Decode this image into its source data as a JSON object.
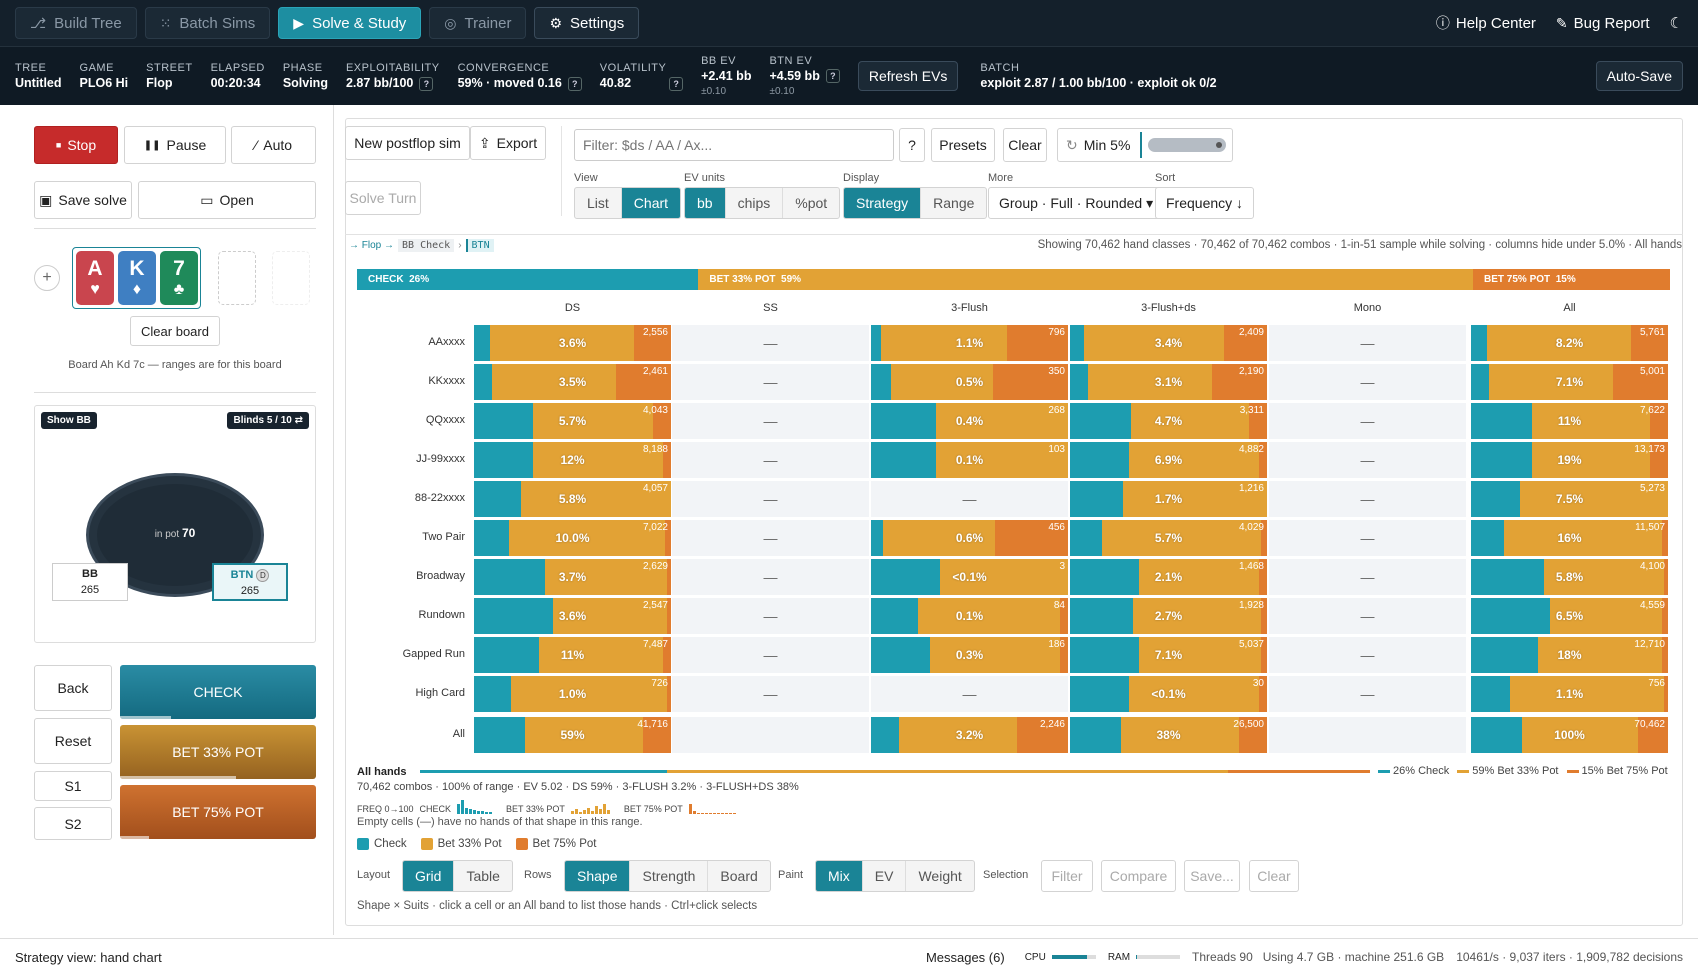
{
  "nav": {
    "tabs": [
      {
        "label": "Build Tree",
        "icon": "tree-icon"
      },
      {
        "label": "Batch Sims",
        "icon": "grid-icon"
      },
      {
        "label": "Solve & Study",
        "icon": "play-icon"
      },
      {
        "label": "Trainer",
        "icon": "target-icon"
      },
      {
        "label": "Settings",
        "icon": "gear-icon"
      }
    ],
    "help": "Help Center",
    "bug": "Bug Report",
    "moon": "☾"
  },
  "status": {
    "tree_lbl": "TREE",
    "tree": "Untitled",
    "game_lbl": "GAME",
    "game": "PLO6 Hi",
    "street_lbl": "STREET",
    "street": "Flop",
    "elapsed_lbl": "ELAPSED",
    "elapsed": "00:20:34",
    "phase_lbl": "PHASE",
    "phase": "Solving",
    "expl_lbl": "EXPLOITABILITY",
    "expl": "2.87 bb/100",
    "conv_lbl": "CONVERGENCE",
    "conv": "59% · moved 0.16",
    "vol_lbl": "VOLATILITY",
    "vol": "40.82",
    "bbev_lbl": "BB EV",
    "bbev": "+2.41 bb",
    "bbev_sub": "±0.10",
    "btnev_lbl": "BTN EV",
    "btnev": "+4.59 bb",
    "btnev_sub": "±0.10",
    "refresh": "Refresh EVs",
    "batch_lbl": "BATCH",
    "batch": "exploit 2.87 / 1.00 bb/100 · exploit ok 0/2",
    "autosave": "Auto-Save",
    "q": "?"
  },
  "left": {
    "stop": "Stop",
    "pause": "Pause",
    "auto": "Auto",
    "save": "Save solve",
    "open": "Open",
    "plus": "+",
    "cards": [
      {
        "rank": "A",
        "suit": "♥",
        "color": "#c9454e"
      },
      {
        "rank": "K",
        "suit": "♦",
        "color": "#3f7fc2"
      },
      {
        "rank": "7",
        "suit": "♣",
        "color": "#1f8a5a"
      }
    ],
    "clear_board": "Clear board",
    "board_note": "Board Ah Kd 7c — ranges are for this board",
    "show_bb": "Show BB",
    "blinds": "Blinds 5 / 10 ⇄",
    "inpot_lbl": "in pot",
    "inpot": "70",
    "bb_name": "BB",
    "bb_stack": "265",
    "btn_name": "BTN",
    "btn_stack": "265",
    "dealer": "D",
    "back": "Back",
    "reset": "Reset",
    "s1": "S1",
    "s2": "S2",
    "actions": [
      {
        "label": "CHECK",
        "frac": 0.26
      },
      {
        "label": "BET 33% POT",
        "frac": 0.59
      },
      {
        "label": "BET 75% POT",
        "frac": 0.15
      }
    ]
  },
  "toolbar": {
    "new_postflop": "New postflop sim",
    "export": "Export",
    "solve_turn": "Solve Turn",
    "filter_ph": "Filter: $ds / AA / Ax...",
    "q": "?",
    "presets": "Presets",
    "clear": "Clear",
    "min": "Min 5%",
    "view_lbl": "View",
    "view": [
      "List",
      "Chart"
    ],
    "ev_lbl": "EV units",
    "ev": [
      "bb",
      "chips",
      "%pot"
    ],
    "display_lbl": "Display",
    "display": [
      "Strategy",
      "Range"
    ],
    "more_lbl": "More",
    "more": "Group · Full · Rounded ▾",
    "sort_lbl": "Sort",
    "sort": "Frequency ↓"
  },
  "crumbs": {
    "flop": "→ Flop →",
    "bb": "BB Check",
    "sep": "›",
    "btn": "BTN"
  },
  "showing": "Showing 70,462 hand classes · 70,462 of 70,462 combos · 1-in-51 sample while solving · columns hide under 5.0% · All hands",
  "topbar": [
    {
      "label": "CHECK  26%",
      "frac": 0.26,
      "color": "#1d9db0"
    },
    {
      "label": "BET 33% POT  59%",
      "frac": 0.59,
      "color": "#e2a235"
    },
    {
      "label": "BET 75% POT  15%",
      "frac": 0.15,
      "color": "#e07c2e"
    }
  ],
  "columns": [
    "DS",
    "SS",
    "3-Flush",
    "3-Flush+ds",
    "Mono",
    "All"
  ],
  "rows": [
    "AAxxxx",
    "KKxxxx",
    "QQxxxx",
    "JJ-99xxxx",
    "88-22xxxx",
    "Two Pair",
    "Broadway",
    "Rundown",
    "Gapped Run",
    "High Card",
    "All"
  ],
  "cells": [
    [
      {
        "c": 0.08,
        "b": 0.73,
        "r": 0.19,
        "p": "3.6%",
        "n": "2,556"
      },
      null,
      {
        "c": 0.05,
        "b": 0.64,
        "r": 0.31,
        "p": "1.1%",
        "n": "796"
      },
      {
        "c": 0.07,
        "b": 0.71,
        "r": 0.22,
        "p": "3.4%",
        "n": "2,409"
      },
      null,
      {
        "c": 0.08,
        "b": 0.73,
        "r": 0.19,
        "p": "8.2%",
        "n": "5,761"
      }
    ],
    [
      {
        "c": 0.09,
        "b": 0.63,
        "r": 0.28,
        "p": "3.5%",
        "n": "2,461"
      },
      null,
      {
        "c": 0.1,
        "b": 0.52,
        "r": 0.38,
        "p": "0.5%",
        "n": "350"
      },
      {
        "c": 0.09,
        "b": 0.63,
        "r": 0.28,
        "p": "3.1%",
        "n": "2,190"
      },
      null,
      {
        "c": 0.09,
        "b": 0.63,
        "r": 0.28,
        "p": "7.1%",
        "n": "5,001"
      }
    ],
    [
      {
        "c": 0.3,
        "b": 0.61,
        "r": 0.09,
        "p": "5.7%",
        "n": "4,043"
      },
      null,
      {
        "c": 0.33,
        "b": 0.67,
        "r": 0.0,
        "p": "0.4%",
        "n": "268"
      },
      {
        "c": 0.31,
        "b": 0.6,
        "r": 0.09,
        "p": "4.7%",
        "n": "3,311"
      },
      null,
      {
        "c": 0.31,
        "b": 0.6,
        "r": 0.09,
        "p": "11%",
        "n": "7,622"
      }
    ],
    [
      {
        "c": 0.3,
        "b": 0.66,
        "r": 0.04,
        "p": "12%",
        "n": "8,188"
      },
      null,
      {
        "c": 0.33,
        "b": 0.67,
        "r": 0.0,
        "p": "0.1%",
        "n": "103"
      },
      {
        "c": 0.3,
        "b": 0.66,
        "r": 0.04,
        "p": "6.9%",
        "n": "4,882"
      },
      null,
      {
        "c": 0.31,
        "b": 0.6,
        "r": 0.09,
        "p": "19%",
        "n": "13,173"
      }
    ],
    [
      {
        "c": 0.24,
        "b": 0.76,
        "r": 0.0,
        "p": "5.8%",
        "n": "4,057"
      },
      null,
      null,
      {
        "c": 0.27,
        "b": 0.73,
        "r": 0.0,
        "p": "1.7%",
        "n": "1,216"
      },
      null,
      {
        "c": 0.25,
        "b": 0.75,
        "r": 0.0,
        "p": "7.5%",
        "n": "5,273"
      }
    ],
    [
      {
        "c": 0.18,
        "b": 0.79,
        "r": 0.03,
        "p": "10.0%",
        "n": "7,022"
      },
      null,
      {
        "c": 0.06,
        "b": 0.57,
        "r": 0.37,
        "p": "0.6%",
        "n": "456"
      },
      {
        "c": 0.16,
        "b": 0.81,
        "r": 0.03,
        "p": "5.7%",
        "n": "4,029"
      },
      null,
      {
        "c": 0.17,
        "b": 0.8,
        "r": 0.03,
        "p": "16%",
        "n": "11,507"
      }
    ],
    [
      {
        "c": 0.36,
        "b": 0.62,
        "r": 0.02,
        "p": "3.7%",
        "n": "2,629"
      },
      null,
      {
        "c": 0.35,
        "b": 0.65,
        "r": 0.0,
        "p": "<0.1%",
        "n": "3"
      },
      {
        "c": 0.35,
        "b": 0.61,
        "r": 0.04,
        "p": "2.1%",
        "n": "1,468"
      },
      null,
      {
        "c": 0.37,
        "b": 0.61,
        "r": 0.02,
        "p": "5.8%",
        "n": "4,100"
      }
    ],
    [
      {
        "c": 0.4,
        "b": 0.58,
        "r": 0.02,
        "p": "3.6%",
        "n": "2,547"
      },
      null,
      {
        "c": 0.24,
        "b": 0.72,
        "r": 0.04,
        "p": "0.1%",
        "n": "84"
      },
      {
        "c": 0.32,
        "b": 0.65,
        "r": 0.03,
        "p": "2.7%",
        "n": "1,928"
      },
      null,
      {
        "c": 0.4,
        "b": 0.57,
        "r": 0.03,
        "p": "6.5%",
        "n": "4,559"
      }
    ],
    [
      {
        "c": 0.33,
        "b": 0.63,
        "r": 0.04,
        "p": "11%",
        "n": "7,487"
      },
      null,
      {
        "c": 0.3,
        "b": 0.66,
        "r": 0.04,
        "p": "0.3%",
        "n": "186"
      },
      {
        "c": 0.35,
        "b": 0.62,
        "r": 0.03,
        "p": "7.1%",
        "n": "5,037"
      },
      null,
      {
        "c": 0.34,
        "b": 0.63,
        "r": 0.03,
        "p": "18%",
        "n": "12,710"
      }
    ],
    [
      {
        "c": 0.19,
        "b": 0.79,
        "r": 0.02,
        "p": "1.0%",
        "n": "726"
      },
      null,
      null,
      {
        "c": 0.3,
        "b": 0.66,
        "r": 0.04,
        "p": "<0.1%",
        "n": "30"
      },
      null,
      {
        "c": 0.2,
        "b": 0.78,
        "r": 0.02,
        "p": "1.1%",
        "n": "756"
      }
    ],
    [
      {
        "c": 0.26,
        "b": 0.6,
        "r": 0.14,
        "p": "59%",
        "n": "41,716"
      },
      {
        "c": 0,
        "b": 0,
        "r": 0,
        "p": "",
        "n": ""
      },
      {
        "c": 0.14,
        "b": 0.6,
        "r": 0.26,
        "p": "3.2%",
        "n": "2,246"
      },
      {
        "c": 0.26,
        "b": 0.6,
        "r": 0.14,
        "p": "38%",
        "n": "26,500"
      },
      {
        "c": 0,
        "b": 0,
        "r": 0,
        "p": "",
        "n": ""
      },
      {
        "c": 0.26,
        "b": 0.59,
        "r": 0.15,
        "p": "100%",
        "n": "70,462"
      }
    ]
  ],
  "empty_mark": "—",
  "summary": {
    "title": "All hands",
    "legend": [
      "26% Check",
      "59% Bet 33% Pot",
      "15% Bet 75% Pot"
    ],
    "line": "70,462 combos · 100% of range · EV 5.02 · DS 59% · 3-FLUSH 3.2% · 3-FLUSH+DS 38%",
    "freq_lbl": "FREQ 0→100",
    "check_lbl": "CHECK",
    "bet33_lbl": "BET 33% POT",
    "bet75_lbl": "BET 75% POT",
    "note": "Empty cells (—) have no hands of that shape in this range.",
    "keys": [
      "Check",
      "Bet 33% Pot",
      "Bet 75% Pot"
    ]
  },
  "bottombar": {
    "layout_lbl": "Layout",
    "layout": [
      "Grid",
      "Table"
    ],
    "rows_lbl": "Rows",
    "rows": [
      "Shape",
      "Strength",
      "Board"
    ],
    "paint_lbl": "Paint",
    "paint": [
      "Mix",
      "EV",
      "Weight"
    ],
    "sel_lbl": "Selection",
    "sel": [
      "Filter",
      "Compare",
      "Save...",
      "Clear"
    ],
    "hint": "Shape × Suits · click a cell or an All band to list those hands · Ctrl+click selects"
  },
  "footer": {
    "left": "Strategy view: hand chart",
    "messages": "Messages (6)",
    "cpu": "CPU",
    "ram": "RAM",
    "threads": "Threads 90",
    "using": "Using 4.7 GB · machine 251.6 GB",
    "rate": "10461/s · 9,037 iters · 1,909,782 decisions"
  },
  "colors": {
    "check": "#1d9db0",
    "bet33": "#e2a235",
    "bet75": "#e07c2e",
    "accent": "#1a8496"
  }
}
